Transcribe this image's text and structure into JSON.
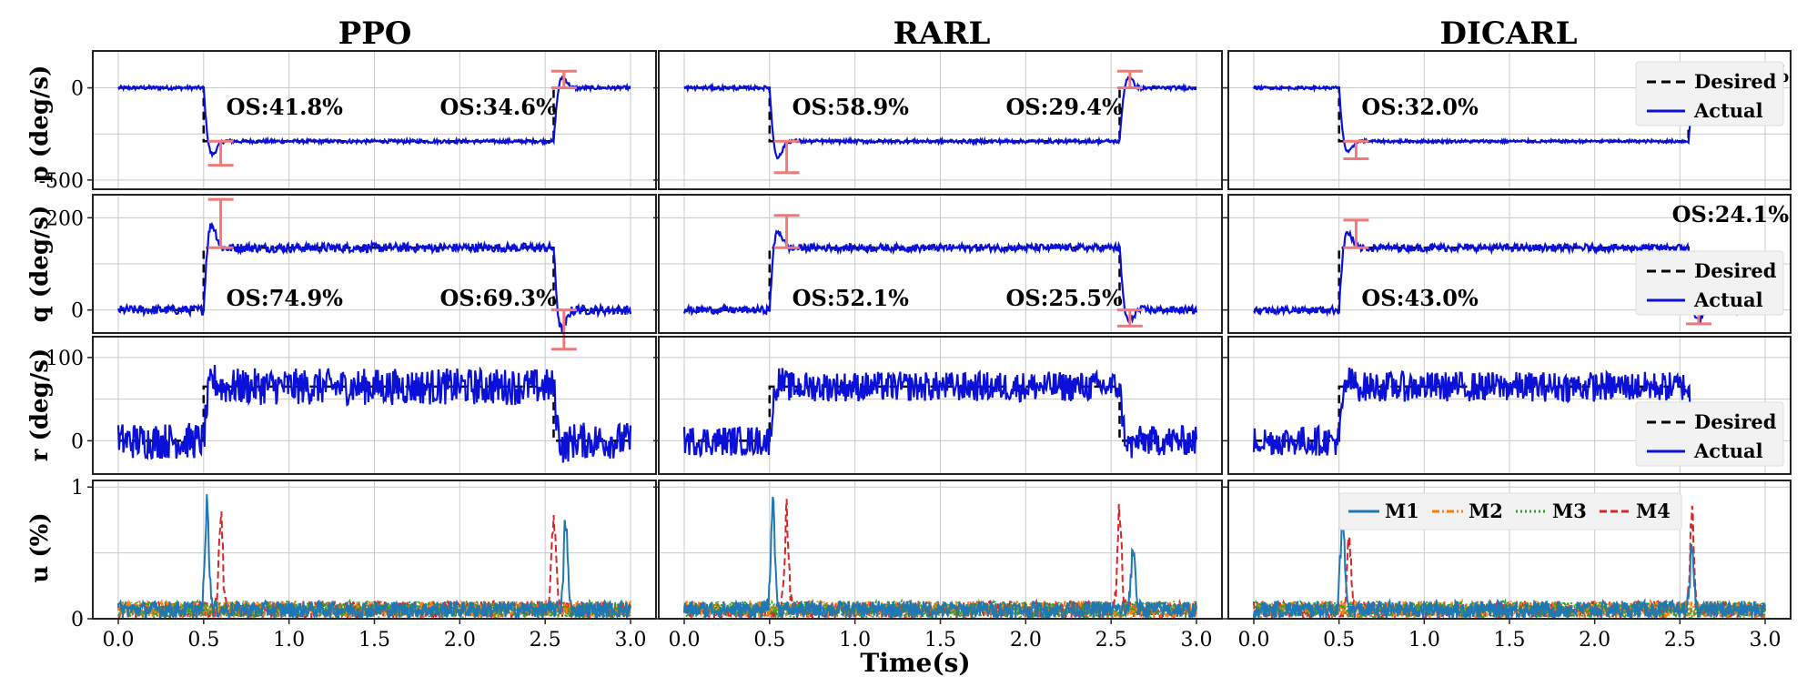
{
  "chart_data": {
    "type": "line",
    "columns": [
      "PPO",
      "RARL",
      "DICARL"
    ],
    "xlabel": "Time(s)",
    "xlim": [
      0,
      3
    ],
    "xticks": [
      "0.0",
      "0.5",
      "1.0",
      "1.5",
      "2.0",
      "2.5",
      "3.0"
    ],
    "grid": true,
    "rows": [
      {
        "ylabel": "p (deg/s)",
        "ylim": [
          -550,
          200
        ],
        "yticks": [
          {
            "v": 0,
            "label": "0"
          },
          {
            "v": -500,
            "label": "-500"
          }
        ]
      },
      {
        "ylabel": "q (deg/s)",
        "ylim": [
          -50,
          250
        ],
        "yticks": [
          {
            "v": 0,
            "label": "0"
          },
          {
            "v": 200,
            "label": "200"
          }
        ]
      },
      {
        "ylabel": "r (deg/s)",
        "ylim": [
          -40,
          125
        ],
        "yticks": [
          {
            "v": 0,
            "label": "0"
          },
          {
            "v": 100,
            "label": "100"
          }
        ]
      },
      {
        "ylabel": "u (%)",
        "ylim": [
          0,
          1.05
        ],
        "yticks": [
          {
            "v": 0,
            "label": "0"
          },
          {
            "v": 1,
            "label": "1"
          }
        ]
      }
    ],
    "desired": {
      "p": {
        "t1": 0.5,
        "t2": 2.55,
        "high": 0,
        "low": -290
      },
      "q": {
        "t1": 0.5,
        "t2": 2.55,
        "high": 135,
        "low": 0
      },
      "r": {
        "t1": 0.5,
        "t2": 2.55,
        "high": 65,
        "low": 0
      }
    },
    "actual": {
      "p": [
        {
          "peak1": -420,
          "peak2": 90,
          "noise": 10
        },
        {
          "peak1": -460,
          "peak2": 90,
          "noise": 10
        },
        {
          "peak1": -385,
          "peak2": 20,
          "noise": 8
        }
      ],
      "q": [
        {
          "peak1": 240,
          "peak2": -85,
          "noise": 10
        },
        {
          "peak1": 205,
          "peak2": -35,
          "noise": 8
        },
        {
          "peak1": 195,
          "peak2": -30,
          "noise": 8
        }
      ],
      "r": [
        {
          "noise": 22
        },
        {
          "noise": 18
        },
        {
          "noise": 18
        }
      ]
    },
    "motor_spikes": [
      {
        "M1": [
          {
            "t": 0.52,
            "v": 1.0
          },
          {
            "t": 2.62,
            "v": 0.82
          }
        ],
        "M4": [
          {
            "t": 0.6,
            "v": 0.88
          },
          {
            "t": 2.55,
            "v": 0.93
          }
        ]
      },
      {
        "M1": [
          {
            "t": 0.52,
            "v": 1.0
          },
          {
            "t": 2.63,
            "v": 0.63
          }
        ],
        "M4": [
          {
            "t": 0.6,
            "v": 0.93
          },
          {
            "t": 2.55,
            "v": 0.99
          }
        ]
      },
      {
        "M1": [
          {
            "t": 0.52,
            "v": 0.9
          },
          {
            "t": 2.57,
            "v": 0.55
          }
        ],
        "M4": [
          {
            "t": 0.56,
            "v": 0.72
          },
          {
            "t": 2.57,
            "v": 0.9
          }
        ]
      }
    ],
    "overshoot": {
      "p": [
        [
          {
            "text": "OS:41.8%",
            "t": 0.6
          },
          {
            "text": "OS:34.6%",
            "t": 2.6
          }
        ],
        [
          {
            "text": "OS:58.9%",
            "t": 0.6
          },
          {
            "text": "OS:29.4%",
            "t": 2.6
          }
        ],
        [
          {
            "text": "OS:32.0%",
            "t": 0.6
          },
          {
            "text": "OS:9.4%",
            "t": 2.6
          }
        ]
      ],
      "q": [
        [
          {
            "text": "OS:74.9%",
            "t": 0.6
          },
          {
            "text": "OS:69.3%",
            "t": 2.6
          }
        ],
        [
          {
            "text": "OS:52.1%",
            "t": 0.6
          },
          {
            "text": "OS:25.5%",
            "t": 2.6
          }
        ],
        [
          {
            "text": "OS:43.0%",
            "t": 0.6
          },
          {
            "text": "OS:24.1%",
            "t": 2.6
          }
        ]
      ]
    },
    "legend_tracking": [
      {
        "label": "Desired",
        "style": "dashed",
        "color": "#000000"
      },
      {
        "label": "Actual",
        "style": "solid",
        "color": "#0a10d8"
      }
    ],
    "legend_motors": [
      {
        "label": "M1",
        "color": "#1f77b4",
        "style": "solid"
      },
      {
        "label": "M2",
        "color": "#ff7f0e",
        "style": "dashdot"
      },
      {
        "label": "M3",
        "color": "#2ca02c",
        "style": "dotted"
      },
      {
        "label": "M4",
        "color": "#d62728",
        "style": "dashed"
      }
    ],
    "colors": {
      "actual": "#0a10d8",
      "desired": "#000000",
      "overshoot": "#f07a7a"
    }
  }
}
